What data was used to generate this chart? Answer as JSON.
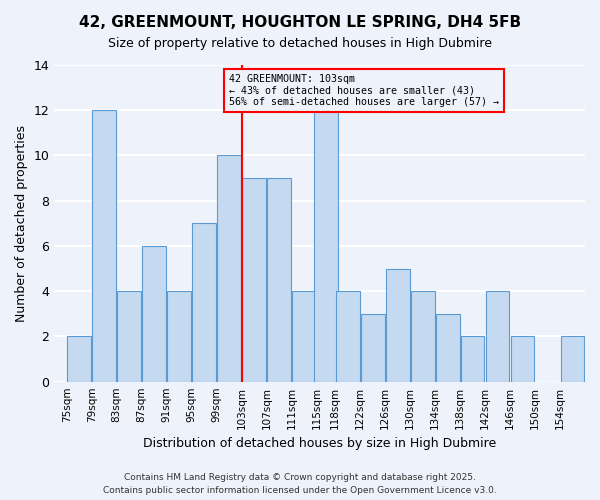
{
  "title": "42, GREENMOUNT, HOUGHTON LE SPRING, DH4 5FB",
  "subtitle": "Size of property relative to detached houses in High Dubmire",
  "xlabel": "Distribution of detached houses by size in High Dubmire",
  "ylabel": "Number of detached properties",
  "annotation_line1": "42 GREENMOUNT: 103sqm",
  "annotation_line2": "← 43% of detached houses are smaller (43)",
  "annotation_line3": "56% of semi-detached houses are larger (57) →",
  "bar_centers": [
    77,
    81,
    85,
    89,
    93,
    97,
    101,
    105,
    109,
    113,
    116.5,
    120,
    124,
    128,
    132,
    136,
    140,
    144,
    148,
    152,
    156
  ],
  "bar_heights": [
    2,
    12,
    4,
    6,
    4,
    7,
    10,
    9,
    9,
    4,
    12,
    4,
    3,
    5,
    4,
    3,
    2,
    4,
    2,
    0,
    2
  ],
  "bar_width": 3.8,
  "tick_labels": [
    "75sqm",
    "79sqm",
    "83sqm",
    "87sqm",
    "91sqm",
    "95sqm",
    "99sqm",
    "103sqm",
    "107sqm",
    "111sqm",
    "115sqm",
    "118sqm",
    "122sqm",
    "126sqm",
    "130sqm",
    "134sqm",
    "138sqm",
    "142sqm",
    "146sqm",
    "150sqm",
    "154sqm"
  ],
  "tick_positions": [
    75,
    79,
    83,
    87,
    91,
    95,
    99,
    103,
    107,
    111,
    115,
    118,
    122,
    126,
    130,
    134,
    138,
    142,
    146,
    150,
    154
  ],
  "bar_color": "#c5d9f0",
  "bar_edge_color": "#5b9bd5",
  "marker_x": 103,
  "marker_color": "#ff0000",
  "annotation_box_color": "#ff0000",
  "ylim": [
    0,
    14
  ],
  "yticks": [
    0,
    2,
    4,
    6,
    8,
    10,
    12,
    14
  ],
  "xlim": [
    73,
    158
  ],
  "background_color": "#eef2fa",
  "grid_color": "#ffffff",
  "footnote": "Contains HM Land Registry data © Crown copyright and database right 2025.\nContains public sector information licensed under the Open Government Licence v3.0."
}
